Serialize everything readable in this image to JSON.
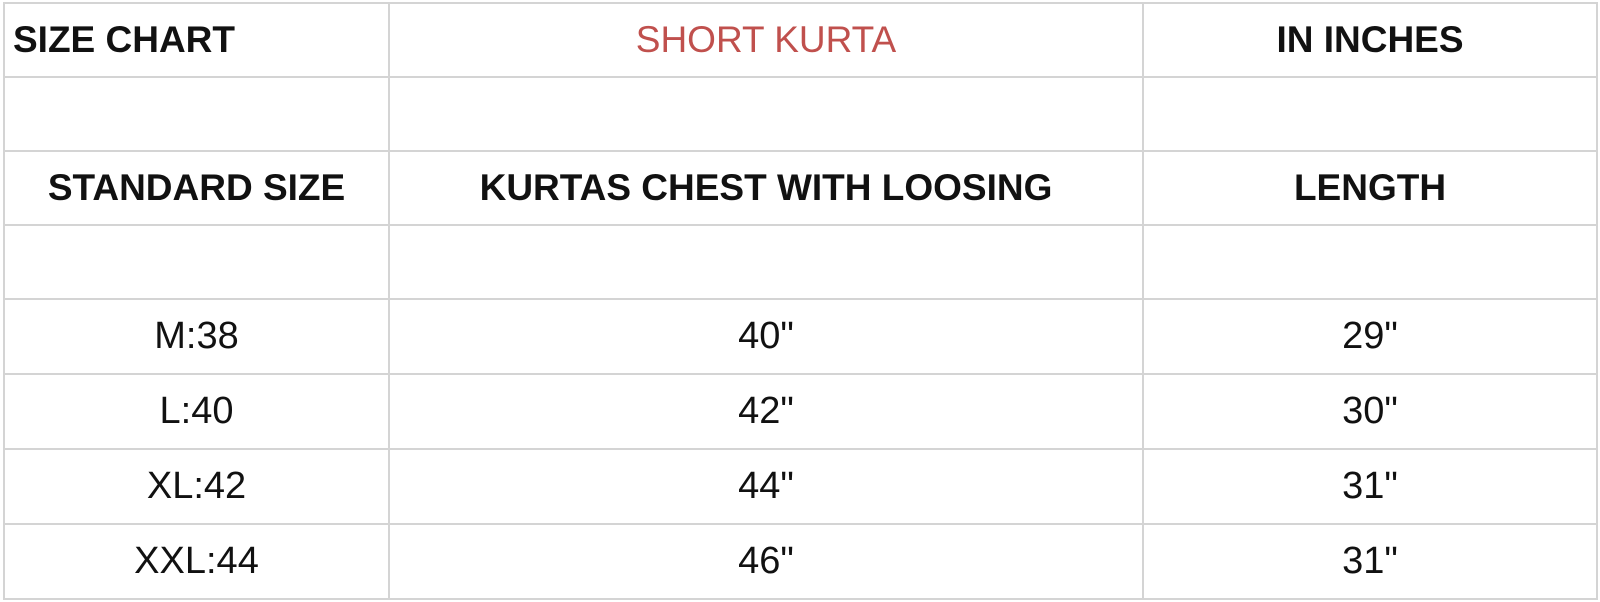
{
  "title_row": {
    "left": "SIZE CHART",
    "center": "SHORT KURTA",
    "right": "IN INCHES"
  },
  "header_row": {
    "size": "STANDARD SIZE",
    "chest": "KURTAS CHEST WITH LOOSING",
    "length": "LENGTH"
  },
  "rows": [
    {
      "size": "M:38",
      "chest": "40\"",
      "length": "29\""
    },
    {
      "size": "L:40",
      "chest": "42\"",
      "length": "30\""
    },
    {
      "size": "XL:42",
      "chest": "44\"",
      "length": "31\""
    },
    {
      "size": "XXL:44",
      "chest": "46\"",
      "length": "31\""
    }
  ],
  "colors": {
    "title_accent": "#c0504d",
    "grid": "#d4d4d4"
  }
}
